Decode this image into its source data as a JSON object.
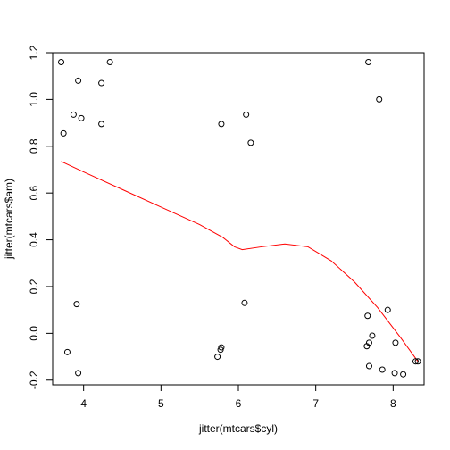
{
  "chart_data": {
    "type": "scatter",
    "title": "",
    "xlabel": "jitter(mtcars$cyl)",
    "ylabel": "jitter(mtcars$am)",
    "xlim": [
      3.6,
      8.4
    ],
    "ylim": [
      -0.22,
      1.2
    ],
    "xticks": [
      4,
      5,
      6,
      7,
      8
    ],
    "yticks": [
      -0.2,
      0.0,
      0.2,
      0.4,
      0.6,
      0.8,
      1.0,
      1.2
    ],
    "xtick_labels": [
      "4",
      "5",
      "6",
      "7",
      "8"
    ],
    "ytick_labels": [
      "-0.2",
      "0.0",
      "0.2",
      "0.4",
      "0.6",
      "0.8",
      "1.0",
      "1.2"
    ],
    "grid": false,
    "legend": "none",
    "point_color": "#000000",
    "smooth_color": "#ff0000",
    "points": [
      {
        "x": 3.71,
        "y": 1.16
      },
      {
        "x": 3.93,
        "y": 1.08
      },
      {
        "x": 4.34,
        "y": 1.16
      },
      {
        "x": 4.23,
        "y": 1.07
      },
      {
        "x": 3.87,
        "y": 0.935
      },
      {
        "x": 3.97,
        "y": 0.92
      },
      {
        "x": 4.23,
        "y": 0.895
      },
      {
        "x": 3.74,
        "y": 0.855
      },
      {
        "x": 3.91,
        "y": 0.125
      },
      {
        "x": 3.79,
        "y": -0.08
      },
      {
        "x": 3.93,
        "y": -0.17
      },
      {
        "x": 5.78,
        "y": 0.895
      },
      {
        "x": 6.1,
        "y": 0.935
      },
      {
        "x": 6.16,
        "y": 0.815
      },
      {
        "x": 6.08,
        "y": 0.13
      },
      {
        "x": 5.78,
        "y": -0.06
      },
      {
        "x": 5.77,
        "y": -0.07
      },
      {
        "x": 5.73,
        "y": -0.1
      },
      {
        "x": 7.68,
        "y": 1.16
      },
      {
        "x": 7.82,
        "y": 1.0
      },
      {
        "x": 7.67,
        "y": 0.075
      },
      {
        "x": 7.93,
        "y": 0.1
      },
      {
        "x": 7.73,
        "y": -0.01
      },
      {
        "x": 7.69,
        "y": -0.04
      },
      {
        "x": 7.66,
        "y": -0.055
      },
      {
        "x": 8.03,
        "y": -0.04
      },
      {
        "x": 7.69,
        "y": -0.14
      },
      {
        "x": 7.86,
        "y": -0.155
      },
      {
        "x": 8.02,
        "y": -0.17
      },
      {
        "x": 8.13,
        "y": -0.175
      },
      {
        "x": 8.29,
        "y": -0.12
      },
      {
        "x": 8.32,
        "y": -0.12
      }
    ],
    "smooth_line": [
      {
        "x": 3.71,
        "y": 0.735
      },
      {
        "x": 4.0,
        "y": 0.69
      },
      {
        "x": 4.5,
        "y": 0.615
      },
      {
        "x": 5.0,
        "y": 0.54
      },
      {
        "x": 5.5,
        "y": 0.465
      },
      {
        "x": 5.8,
        "y": 0.41
      },
      {
        "x": 5.95,
        "y": 0.37
      },
      {
        "x": 6.05,
        "y": 0.358
      },
      {
        "x": 6.3,
        "y": 0.37
      },
      {
        "x": 6.6,
        "y": 0.382
      },
      {
        "x": 6.9,
        "y": 0.37
      },
      {
        "x": 7.2,
        "y": 0.31
      },
      {
        "x": 7.5,
        "y": 0.22
      },
      {
        "x": 7.8,
        "y": 0.11
      },
      {
        "x": 8.1,
        "y": -0.02
      },
      {
        "x": 8.32,
        "y": -0.12
      }
    ]
  }
}
